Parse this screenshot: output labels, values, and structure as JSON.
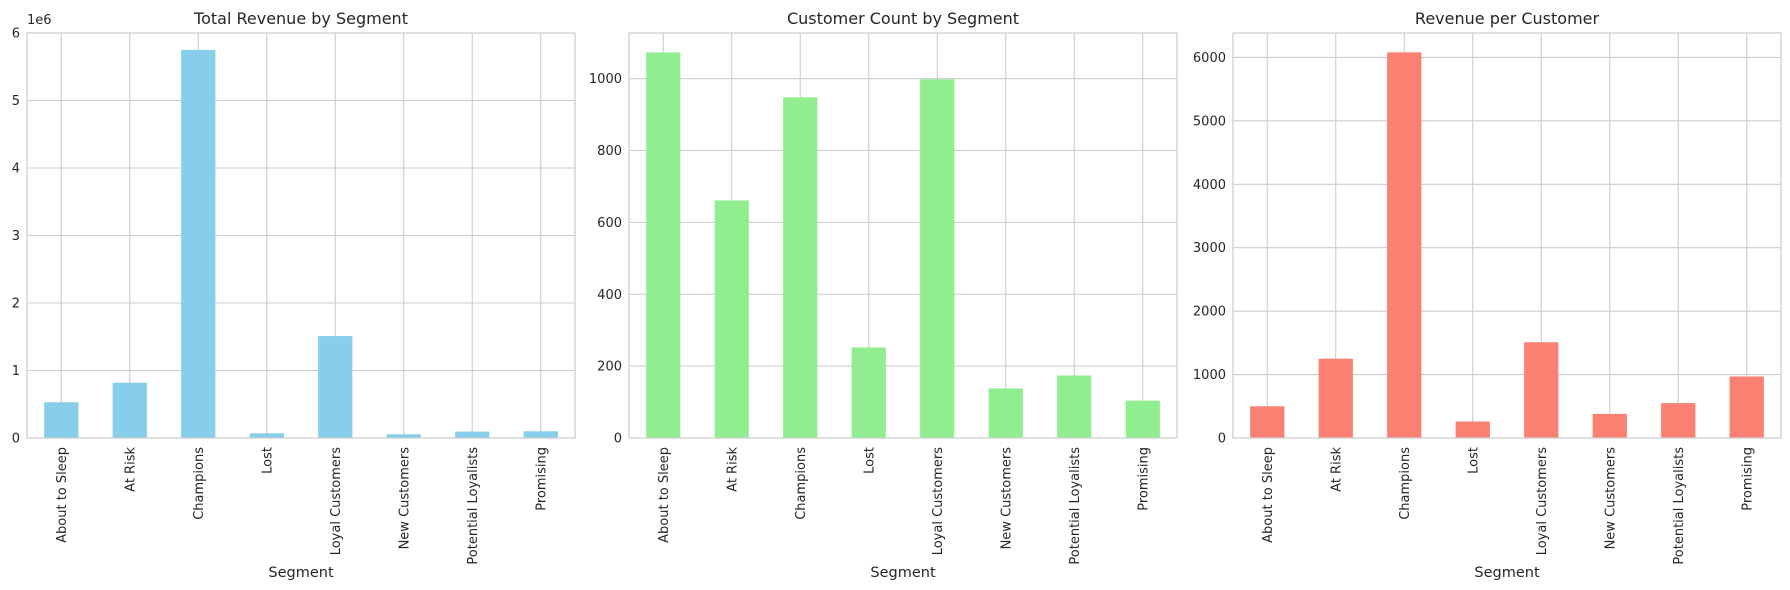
{
  "chart_data": [
    {
      "type": "bar",
      "title": "Total Revenue by Segment",
      "xlabel": "Segment",
      "ylabel": "",
      "y_offset_label": "1e6",
      "y_scale": 1000000,
      "categories": [
        "About to Sleep",
        "At Risk",
        "Champions",
        "Lost",
        "Loyal Customers",
        "New Customers",
        "Potential Loyalists",
        "Promising"
      ],
      "values": [
        530000,
        820000,
        5750000,
        70000,
        1510000,
        55000,
        95000,
        100000
      ],
      "ylim": [
        0,
        6000000
      ],
      "yticks": [
        0,
        1000000,
        2000000,
        3000000,
        4000000,
        5000000,
        6000000
      ],
      "ytick_labels": [
        "0",
        "1",
        "2",
        "3",
        "4",
        "5",
        "6"
      ],
      "color": "#87ceeb",
      "grid": true
    },
    {
      "type": "bar",
      "title": "Customer Count by Segment",
      "xlabel": "Segment",
      "ylabel": "",
      "categories": [
        "About to Sleep",
        "At Risk",
        "Champions",
        "Lost",
        "Loyal Customers",
        "New Customers",
        "Potential Loyalists",
        "Promising"
      ],
      "values": [
        1073,
        661,
        948,
        252,
        998,
        138,
        174,
        104
      ],
      "ylim": [
        0,
        1127
      ],
      "yticks": [
        0,
        200,
        400,
        600,
        800,
        1000
      ],
      "ytick_labels": [
        "0",
        "200",
        "400",
        "600",
        "800",
        "1000"
      ],
      "color": "#90ee90",
      "grid": true
    },
    {
      "type": "bar",
      "title": "Revenue per Customer",
      "xlabel": "Segment",
      "ylabel": "",
      "categories": [
        "About to Sleep",
        "At Risk",
        "Champions",
        "Lost",
        "Loyal Customers",
        "New Customers",
        "Potential Loyalists",
        "Promising"
      ],
      "values": [
        500,
        1250,
        6080,
        260,
        1510,
        380,
        550,
        970
      ],
      "ylim": [
        0,
        6385
      ],
      "yticks": [
        0,
        1000,
        2000,
        3000,
        4000,
        5000,
        6000
      ],
      "ytick_labels": [
        "0",
        "1000",
        "2000",
        "3000",
        "4000",
        "5000",
        "6000"
      ],
      "color": "#fa8072",
      "grid": true
    }
  ]
}
